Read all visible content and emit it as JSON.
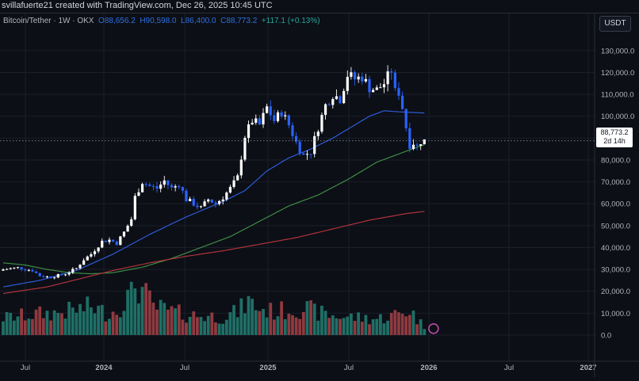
{
  "credit": "svillafuerte21 created with TradingView.com, Dec 26, 2025 10:45 UTC",
  "legend": {
    "symbol": "Bitcoin/Tether · 1W · OKX",
    "open": "O88,656.2",
    "high": "H90,598.0",
    "low": "L86,400.0",
    "close": "C88,773.2",
    "change": "+117.1 (+0.13%)"
  },
  "currency_button": "USDT",
  "price_tag": {
    "price": "88,773.2",
    "countdown": "2d 14h"
  },
  "colors": {
    "up": "#26a69a",
    "down": "#2962ff",
    "up_candle": "#ffffff",
    "sma_blue": "#2e5bd8",
    "sma_green": "#3f8c45",
    "sma_red": "#b2333b",
    "vol_up": "#1f6f66",
    "vol_down": "#8f3a40"
  },
  "chart_data": {
    "type": "candlestick",
    "title": "",
    "y_ticks": [
      "130,000.0",
      "120,000.0",
      "110,000.0",
      "100,000.0",
      "90,000.0",
      "80,000.0",
      "70,000.0",
      "60,000.0",
      "50,000.0",
      "40,000.0",
      "30,000.0",
      "20,000.0",
      "10,000.0",
      "0.0"
    ],
    "x_ticks": [
      {
        "label": "Jul",
        "bold": false
      },
      {
        "label": "2024",
        "bold": true
      },
      {
        "label": "Jul",
        "bold": false
      },
      {
        "label": "2025",
        "bold": true
      },
      {
        "label": "Jul",
        "bold": false
      },
      {
        "label": "2026",
        "bold": true
      },
      {
        "label": "Jul",
        "bold": false
      },
      {
        "label": "2027",
        "bold": true
      }
    ],
    "ylim": [
      0,
      135000
    ],
    "grid": true,
    "current_price": 88773.2,
    "close_anchors": [
      {
        "i": 0,
        "v": 30000
      },
      {
        "i": 4,
        "v": 30800
      },
      {
        "i": 8,
        "v": 29500
      },
      {
        "i": 10,
        "v": 27000
      },
      {
        "i": 13,
        "v": 26500
      },
      {
        "i": 17,
        "v": 28000
      },
      {
        "i": 20,
        "v": 30500
      },
      {
        "i": 22,
        "v": 34500
      },
      {
        "i": 24,
        "v": 37000
      },
      {
        "i": 27,
        "v": 42800
      },
      {
        "i": 29,
        "v": 43500
      },
      {
        "i": 31,
        "v": 42000
      },
      {
        "i": 33,
        "v": 47000
      },
      {
        "i": 35,
        "v": 53000
      },
      {
        "i": 36,
        "v": 63000
      },
      {
        "i": 38,
        "v": 70000
      },
      {
        "i": 40,
        "v": 68000
      },
      {
        "i": 42,
        "v": 67000
      },
      {
        "i": 44,
        "v": 70500
      },
      {
        "i": 46,
        "v": 67000
      },
      {
        "i": 48,
        "v": 69000
      },
      {
        "i": 50,
        "v": 62000
      },
      {
        "i": 52,
        "v": 60000
      },
      {
        "i": 54,
        "v": 58000
      },
      {
        "i": 56,
        "v": 62000
      },
      {
        "i": 58,
        "v": 60000
      },
      {
        "i": 60,
        "v": 63000
      },
      {
        "i": 62,
        "v": 67000
      },
      {
        "i": 64,
        "v": 72000
      },
      {
        "i": 66,
        "v": 91000
      },
      {
        "i": 68,
        "v": 98000
      },
      {
        "i": 70,
        "v": 96000
      },
      {
        "i": 72,
        "v": 104000
      },
      {
        "i": 74,
        "v": 98000
      },
      {
        "i": 76,
        "v": 102000
      },
      {
        "i": 78,
        "v": 96000
      },
      {
        "i": 80,
        "v": 88000
      },
      {
        "i": 82,
        "v": 82000
      },
      {
        "i": 84,
        "v": 84000
      },
      {
        "i": 86,
        "v": 95000
      },
      {
        "i": 88,
        "v": 105000
      },
      {
        "i": 90,
        "v": 110000
      },
      {
        "i": 92,
        "v": 108000
      },
      {
        "i": 94,
        "v": 119000
      },
      {
        "i": 96,
        "v": 117000
      },
      {
        "i": 98,
        "v": 118000
      },
      {
        "i": 100,
        "v": 113000
      },
      {
        "i": 102,
        "v": 112000
      },
      {
        "i": 104,
        "v": 115000
      },
      {
        "i": 106,
        "v": 121000
      },
      {
        "i": 107,
        "v": 111000
      },
      {
        "i": 108,
        "v": 111000
      },
      {
        "i": 109,
        "v": 104000
      },
      {
        "i": 110,
        "v": 95000
      },
      {
        "i": 111,
        "v": 87000
      },
      {
        "i": 112,
        "v": 88000
      },
      {
        "i": 113,
        "v": 86000
      },
      {
        "i": 114,
        "v": 88656
      },
      {
        "i": 115,
        "v": 88773
      }
    ],
    "ma_series": [
      {
        "color_key": "sma_blue",
        "points": [
          [
            0,
            22000
          ],
          [
            10,
            25000
          ],
          [
            20,
            29500
          ],
          [
            30,
            37000
          ],
          [
            40,
            46000
          ],
          [
            50,
            54000
          ],
          [
            60,
            61000
          ],
          [
            66,
            66000
          ],
          [
            72,
            75000
          ],
          [
            78,
            81000
          ],
          [
            84,
            85000
          ],
          [
            90,
            90000
          ],
          [
            96,
            96000
          ],
          [
            100,
            100000
          ],
          [
            104,
            102500
          ],
          [
            108,
            102000
          ],
          [
            115,
            101500
          ]
        ]
      },
      {
        "color_key": "sma_green",
        "points": [
          [
            0,
            33000
          ],
          [
            6,
            32000
          ],
          [
            12,
            30000
          ],
          [
            18,
            28500
          ],
          [
            24,
            28000
          ],
          [
            30,
            28500
          ],
          [
            38,
            31000
          ],
          [
            46,
            35000
          ],
          [
            54,
            40000
          ],
          [
            62,
            45000
          ],
          [
            70,
            52000
          ],
          [
            78,
            59000
          ],
          [
            86,
            64000
          ],
          [
            94,
            71000
          ],
          [
            102,
            79000
          ],
          [
            110,
            84000
          ],
          [
            115,
            87000
          ]
        ]
      },
      {
        "color_key": "sma_red",
        "points": [
          [
            0,
            19000
          ],
          [
            12,
            22000
          ],
          [
            24,
            27000
          ],
          [
            30,
            29500
          ],
          [
            40,
            33000
          ],
          [
            50,
            36000
          ],
          [
            60,
            38500
          ],
          [
            70,
            41500
          ],
          [
            80,
            44500
          ],
          [
            90,
            48500
          ],
          [
            100,
            52500
          ],
          [
            110,
            55500
          ],
          [
            115,
            56500
          ]
        ]
      }
    ],
    "volume_profile": [
      {
        "i": 0,
        "v": 8500
      },
      {
        "i": 5,
        "v": 9500
      },
      {
        "i": 10,
        "v": 10500
      },
      {
        "i": 15,
        "v": 11000
      },
      {
        "i": 20,
        "v": 12500
      },
      {
        "i": 24,
        "v": 14000
      },
      {
        "i": 28,
        "v": 11000
      },
      {
        "i": 31,
        "v": 12000
      },
      {
        "i": 33,
        "v": 17500
      },
      {
        "i": 35,
        "v": 19500
      },
      {
        "i": 36,
        "v": 26000
      },
      {
        "i": 38,
        "v": 22000
      },
      {
        "i": 41,
        "v": 14000
      },
      {
        "i": 45,
        "v": 12000
      },
      {
        "i": 50,
        "v": 10000
      },
      {
        "i": 55,
        "v": 9500
      },
      {
        "i": 60,
        "v": 9000
      },
      {
        "i": 64,
        "v": 11500
      },
      {
        "i": 67,
        "v": 16500
      },
      {
        "i": 70,
        "v": 13000
      },
      {
        "i": 74,
        "v": 11500
      },
      {
        "i": 78,
        "v": 12500
      },
      {
        "i": 82,
        "v": 13500
      },
      {
        "i": 86,
        "v": 11000
      },
      {
        "i": 90,
        "v": 9500
      },
      {
        "i": 94,
        "v": 9000
      },
      {
        "i": 98,
        "v": 8500
      },
      {
        "i": 102,
        "v": 8000
      },
      {
        "i": 106,
        "v": 9500
      },
      {
        "i": 109,
        "v": 11000
      },
      {
        "i": 111,
        "v": 12500
      },
      {
        "i": 113,
        "v": 8000
      },
      {
        "i": 115,
        "v": 4000
      }
    ]
  }
}
